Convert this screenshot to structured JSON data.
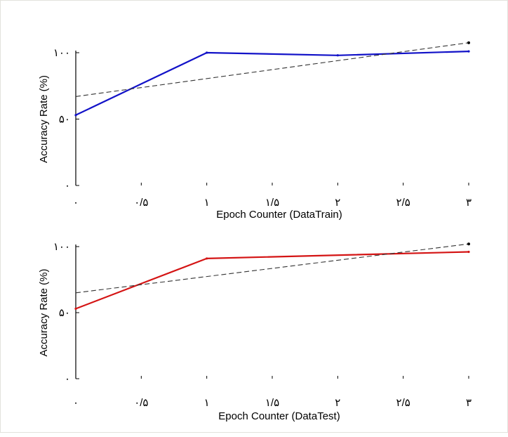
{
  "chart_data": [
    {
      "type": "line",
      "xlabel": "Epoch Counter (DataTrain)",
      "ylabel": "Accuracy Rate (%)",
      "xlim": [
        0,
        3
      ],
      "ylim": [
        0,
        100
      ],
      "x_ticks": [
        0,
        0.5,
        1,
        1.5,
        2,
        2.5,
        3
      ],
      "x_tick_labels": [
        "۰",
        "۰/۵",
        "۱",
        "۱/۵",
        "۲",
        "۲/۵",
        "۳"
      ],
      "y_ticks": [
        0,
        50,
        100
      ],
      "y_tick_labels": [
        "۰",
        "۵۰",
        "۱۰۰"
      ],
      "grid": false,
      "series": [
        {
          "style": "solid",
          "color": "#1212c8",
          "x": [
            0,
            1,
            2,
            3
          ],
          "y": [
            53,
            100,
            98,
            101
          ]
        },
        {
          "style": "dashed",
          "color": "#333333",
          "x": [
            0,
            3
          ],
          "y": [
            67,
            107.5
          ]
        }
      ]
    },
    {
      "type": "line",
      "xlabel": "Epoch Counter (DataTest)",
      "ylabel": "Accuracy Rate (%)",
      "xlim": [
        0,
        3
      ],
      "ylim": [
        0,
        100
      ],
      "x_ticks": [
        0,
        0.5,
        1,
        1.5,
        2,
        2.5,
        3
      ],
      "x_tick_labels": [
        "۰",
        "۰/۵",
        "۱",
        "۱/۵",
        "۲",
        "۲/۵",
        "۳"
      ],
      "y_ticks": [
        0,
        50,
        100
      ],
      "y_tick_labels": [
        "۰",
        "۵۰",
        "۱۰۰"
      ],
      "grid": false,
      "series": [
        {
          "style": "solid",
          "color": "#d41414",
          "x": [
            0,
            1,
            3
          ],
          "y": [
            53,
            91,
            96
          ]
        },
        {
          "style": "dashed",
          "color": "#333333",
          "x": [
            0,
            3
          ],
          "y": [
            65,
            102
          ]
        }
      ]
    }
  ]
}
